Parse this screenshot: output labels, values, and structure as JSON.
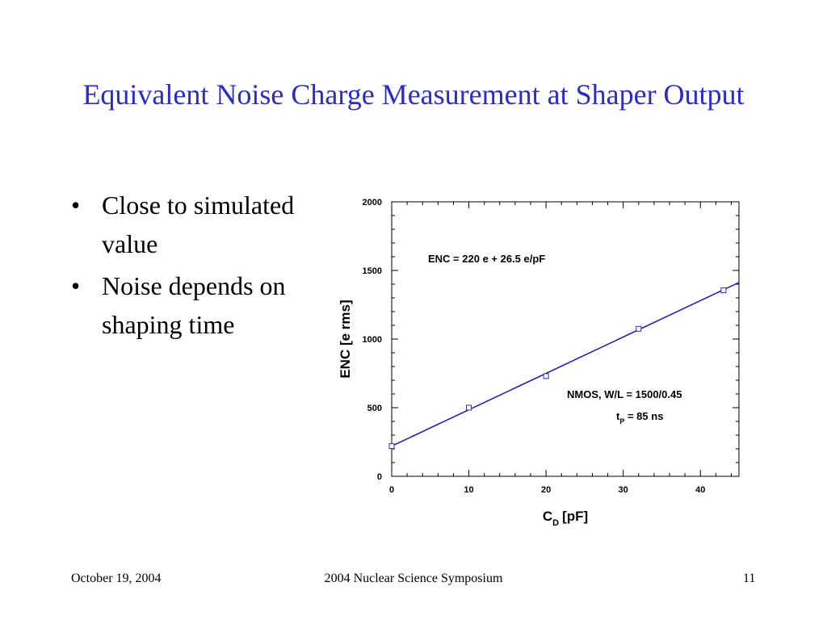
{
  "slide": {
    "title": "Equivalent Noise Charge Measurement at Shaper Output",
    "bullets": [
      {
        "text": "Close to simulated value"
      },
      {
        "text": "Noise depends on shaping time"
      }
    ]
  },
  "footer": {
    "date": "October 19, 2004",
    "event": "2004 Nuclear Science Symposium",
    "page": "11"
  },
  "chart_data": {
    "type": "scatter",
    "xlabel": "C",
    "xlabel_sub": "D",
    "xlabel_unit": "[pF]",
    "ylabel": "ENC  [e rms]",
    "xlim": [
      0,
      45
    ],
    "ylim": [
      0,
      2000
    ],
    "x_ticks": [
      0,
      10,
      20,
      30,
      40
    ],
    "y_ticks": [
      0,
      500,
      1000,
      1500,
      2000
    ],
    "grid": false,
    "series": [
      {
        "points": [
          [
            0,
            220
          ],
          [
            10,
            500
          ],
          [
            20,
            730
          ],
          [
            32,
            1075
          ],
          [
            43,
            1355
          ]
        ],
        "marker": "square",
        "color": "#2b2bc8"
      }
    ],
    "fit_line": {
      "intercept": 220,
      "slope": 26.5,
      "color": "#1a1ab8"
    },
    "annotations": [
      {
        "text": "ENC = 220 e + 26.5 e/pF"
      },
      {
        "text": "NMOS, W/L = 1500/0.45"
      },
      {
        "text": "t",
        "sub": "P",
        "rest": " = 85 ns"
      }
    ]
  }
}
